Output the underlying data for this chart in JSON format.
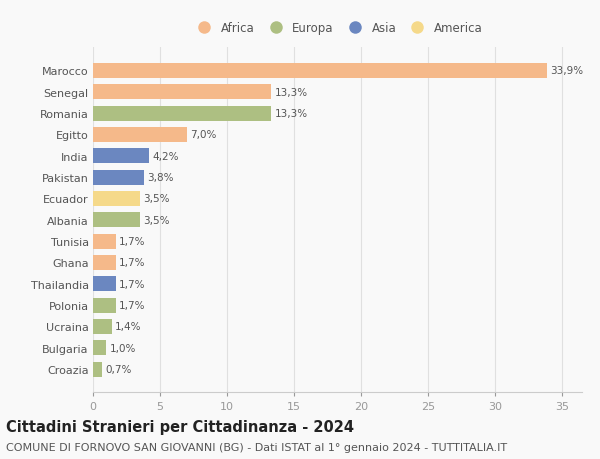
{
  "countries": [
    "Marocco",
    "Senegal",
    "Romania",
    "Egitto",
    "India",
    "Pakistan",
    "Ecuador",
    "Albania",
    "Tunisia",
    "Ghana",
    "Thailandia",
    "Polonia",
    "Ucraina",
    "Bulgaria",
    "Croazia"
  ],
  "values": [
    33.9,
    13.3,
    13.3,
    7.0,
    4.2,
    3.8,
    3.5,
    3.5,
    1.7,
    1.7,
    1.7,
    1.7,
    1.4,
    1.0,
    0.7
  ],
  "labels": [
    "33,9%",
    "13,3%",
    "13,3%",
    "7,0%",
    "4,2%",
    "3,8%",
    "3,5%",
    "3,5%",
    "1,7%",
    "1,7%",
    "1,7%",
    "1,7%",
    "1,4%",
    "1,0%",
    "0,7%"
  ],
  "continents": [
    "Africa",
    "Africa",
    "Europa",
    "Africa",
    "Asia",
    "Asia",
    "America",
    "Europa",
    "Africa",
    "Africa",
    "Asia",
    "Europa",
    "Europa",
    "Europa",
    "Europa"
  ],
  "colors": {
    "Africa": "#F5B98A",
    "Europa": "#ADBF82",
    "Asia": "#6B87C0",
    "America": "#F5D98A"
  },
  "legend_order": [
    "Africa",
    "Europa",
    "Asia",
    "America"
  ],
  "xlim": [
    0,
    36.5
  ],
  "xticks": [
    0,
    5,
    10,
    15,
    20,
    25,
    30,
    35
  ],
  "title": "Cittadini Stranieri per Cittadinanza - 2024",
  "subtitle": "COMUNE DI FORNOVO SAN GIOVANNI (BG) - Dati ISTAT al 1° gennaio 2024 - TUTTITALIA.IT",
  "background_color": "#f9f9f9",
  "bar_height": 0.7,
  "title_fontsize": 10.5,
  "subtitle_fontsize": 8,
  "label_fontsize": 7.5,
  "tick_fontsize": 8,
  "legend_fontsize": 8.5
}
